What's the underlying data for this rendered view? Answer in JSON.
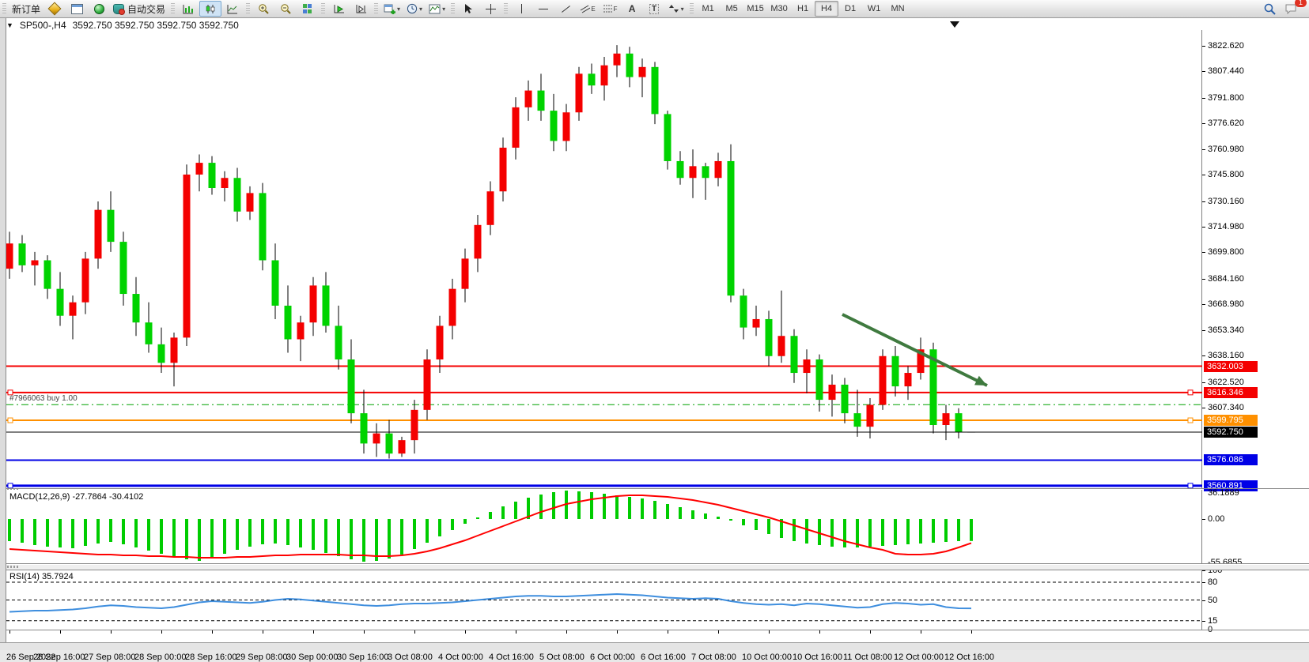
{
  "toolbar": {
    "new_order_label": "新订单",
    "auto_trading_label": "自动交易",
    "timeframes": [
      "M1",
      "M5",
      "M15",
      "M30",
      "H1",
      "H4",
      "D1",
      "W1",
      "MN"
    ],
    "active_timeframe": "H4",
    "notification_count": "1"
  },
  "chart_header": {
    "symbol_period": "SP500-,H4",
    "ohlc": "3592.750 3592.750 3592.750 3592.750"
  },
  "chart": {
    "colors": {
      "bull": "#f40000",
      "bear": "#00d300",
      "wick": "#000000",
      "macd_histogram": "#00cc00",
      "macd_signal": "#ff0000",
      "rsi_line": "#3e8ede",
      "arrow": "#3f7a3f"
    },
    "price_axis": {
      "ticks": [
        "3822.620",
        "3807.440",
        "3791.800",
        "3776.620",
        "3760.980",
        "3745.800",
        "3730.160",
        "3714.980",
        "3699.800",
        "3684.160",
        "3668.980",
        "3653.340",
        "3638.160",
        "3622.520",
        "3607.340"
      ]
    },
    "levels": [
      {
        "name": "resistance-line-upper",
        "price": 3632.003,
        "badge": "3632.003",
        "color": "#f40000",
        "width": 2,
        "dash": null,
        "handles": false
      },
      {
        "name": "resistance-line-lower",
        "price": 3616.346,
        "badge": "3616.346",
        "color": "#f40000",
        "width": 2,
        "dash": null,
        "handles": true
      },
      {
        "name": "buy-order-line",
        "price": 3609.1,
        "badge": null,
        "color": "#00a000",
        "width": 1,
        "dash": "9,4,2,4",
        "handles": false
      },
      {
        "name": "support-line-orange",
        "price": 3599.795,
        "badge": "3599.795",
        "color": "#ff9000",
        "width": 2,
        "dash": null,
        "handles": true
      },
      {
        "name": "current-price-line",
        "price": 3592.75,
        "badge": "3592.750",
        "color": "#000000",
        "width": 1,
        "dash": null,
        "handles": false
      },
      {
        "name": "support-line-blue-upper",
        "price": 3576.086,
        "badge": "3576.086",
        "color": "#0000e6",
        "width": 2,
        "dash": null,
        "handles": false
      },
      {
        "name": "support-line-blue-lower",
        "price": 3560.891,
        "badge": "3560.891",
        "color": "#0000e6",
        "width": 3,
        "dash": null,
        "handles": true
      }
    ],
    "order_label": "#7966063 buy 1.00",
    "candles": [
      [
        3690,
        3712,
        3684,
        3705
      ],
      [
        3705,
        3710,
        3688,
        3692
      ],
      [
        3692,
        3700,
        3680,
        3695
      ],
      [
        3695,
        3698,
        3672,
        3678
      ],
      [
        3678,
        3688,
        3656,
        3662
      ],
      [
        3662,
        3674,
        3648,
        3670
      ],
      [
        3670,
        3700,
        3663,
        3696
      ],
      [
        3696,
        3730,
        3690,
        3725
      ],
      [
        3725,
        3736,
        3700,
        3706
      ],
      [
        3706,
        3712,
        3668,
        3675
      ],
      [
        3675,
        3685,
        3650,
        3658
      ],
      [
        3658,
        3670,
        3640,
        3645
      ],
      [
        3645,
        3655,
        3628,
        3634
      ],
      [
        3634,
        3652,
        3620,
        3649
      ],
      [
        3649,
        3752,
        3644,
        3746
      ],
      [
        3746,
        3758,
        3736,
        3753
      ],
      [
        3753,
        3757,
        3734,
        3738
      ],
      [
        3738,
        3748,
        3730,
        3744
      ],
      [
        3744,
        3750,
        3718,
        3724
      ],
      [
        3724,
        3739,
        3719,
        3735
      ],
      [
        3735,
        3741,
        3689,
        3695
      ],
      [
        3695,
        3705,
        3660,
        3668
      ],
      [
        3668,
        3680,
        3640,
        3648
      ],
      [
        3648,
        3662,
        3635,
        3658
      ],
      [
        3658,
        3685,
        3650,
        3680
      ],
      [
        3680,
        3688,
        3652,
        3656
      ],
      [
        3656,
        3668,
        3630,
        3636
      ],
      [
        3636,
        3648,
        3598,
        3604
      ],
      [
        3604,
        3618,
        3580,
        3586
      ],
      [
        3586,
        3598,
        3578,
        3592
      ],
      [
        3592,
        3600,
        3577,
        3580
      ],
      [
        3580,
        3590,
        3578,
        3588
      ],
      [
        3588,
        3612,
        3580,
        3606
      ],
      [
        3606,
        3642,
        3600,
        3636
      ],
      [
        3636,
        3662,
        3628,
        3656
      ],
      [
        3656,
        3684,
        3648,
        3678
      ],
      [
        3678,
        3702,
        3670,
        3696
      ],
      [
        3696,
        3722,
        3688,
        3716
      ],
      [
        3716,
        3742,
        3710,
        3736
      ],
      [
        3736,
        3768,
        3730,
        3762
      ],
      [
        3762,
        3792,
        3755,
        3786
      ],
      [
        3786,
        3802,
        3778,
        3796
      ],
      [
        3796,
        3806,
        3778,
        3784
      ],
      [
        3784,
        3794,
        3760,
        3766
      ],
      [
        3766,
        3788,
        3760,
        3783
      ],
      [
        3783,
        3810,
        3778,
        3806
      ],
      [
        3806,
        3812,
        3794,
        3799
      ],
      [
        3799,
        3816,
        3790,
        3811
      ],
      [
        3811,
        3823,
        3804,
        3818
      ],
      [
        3818,
        3822,
        3798,
        3804
      ],
      [
        3804,
        3815,
        3792,
        3810
      ],
      [
        3810,
        3813,
        3776,
        3782
      ],
      [
        3782,
        3784,
        3749,
        3754
      ],
      [
        3754,
        3760,
        3740,
        3744
      ],
      [
        3744,
        3761,
        3732,
        3751
      ],
      [
        3751,
        3753,
        3731,
        3744
      ],
      [
        3744,
        3759,
        3739,
        3754
      ],
      [
        3754,
        3764,
        3670,
        3674
      ],
      [
        3674,
        3678,
        3648,
        3655
      ],
      [
        3655,
        3668,
        3650,
        3660
      ],
      [
        3660,
        3665,
        3632,
        3638
      ],
      [
        3638,
        3677,
        3634,
        3650
      ],
      [
        3650,
        3654,
        3622,
        3628
      ],
      [
        3628,
        3642,
        3616,
        3636
      ],
      [
        3636,
        3639,
        3605,
        3612
      ],
      [
        3612,
        3627,
        3602,
        3621
      ],
      [
        3621,
        3625,
        3598,
        3604
      ],
      [
        3604,
        3618,
        3590,
        3596
      ],
      [
        3596,
        3613,
        3589,
        3609
      ],
      [
        3609,
        3642,
        3606,
        3638
      ],
      [
        3638,
        3644,
        3614,
        3620
      ],
      [
        3620,
        3632,
        3612,
        3628
      ],
      [
        3628,
        3649,
        3624,
        3642
      ],
      [
        3642,
        3646,
        3592,
        3597
      ],
      [
        3597,
        3609,
        3588,
        3604
      ],
      [
        3604,
        3607,
        3589,
        3593
      ],
      [
        3592.75,
        3592.75,
        3592.75,
        3592.75
      ]
    ],
    "macd": {
      "name_label": "MACD(12,26,9)",
      "values_label": "-27.7864 -30.4102",
      "scale_max": "36.1889",
      "scale_zero": "0.00",
      "scale_min": "-55.6855",
      "histogram": [
        -28,
        -30,
        -33,
        -35,
        -36,
        -37,
        -34,
        -31,
        -29,
        -32,
        -36,
        -40,
        -44,
        -48,
        -51,
        -53,
        -49,
        -44,
        -39,
        -35,
        -32,
        -31,
        -33,
        -36,
        -39,
        -43,
        -47,
        -51,
        -54,
        -53,
        -50,
        -45,
        -38,
        -30,
        -22,
        -14,
        -6,
        2,
        9,
        16,
        22,
        27,
        31,
        34,
        36,
        35,
        34,
        32,
        30,
        28,
        26,
        23,
        19,
        15,
        11,
        7,
        3,
        -2,
        -8,
        -14,
        -19,
        -24,
        -28,
        -31,
        -33,
        -35,
        -36,
        -36,
        -35,
        -34,
        -33,
        -32,
        -31,
        -30,
        -29,
        -28,
        -27.8
      ],
      "signal": [
        -38,
        -39,
        -40,
        -41,
        -42,
        -43,
        -44,
        -45,
        -45,
        -46,
        -46,
        -47,
        -47,
        -48,
        -48,
        -49,
        -49,
        -49,
        -48,
        -48,
        -47,
        -46,
        -46,
        -45,
        -45,
        -45,
        -45,
        -46,
        -46,
        -47,
        -47,
        -46,
        -44,
        -41,
        -37,
        -32,
        -27,
        -21,
        -15,
        -9,
        -3,
        3,
        9,
        14,
        19,
        22,
        25,
        27,
        29,
        30,
        30,
        29,
        28,
        26,
        24,
        21,
        18,
        14,
        10,
        6,
        2,
        -3,
        -8,
        -13,
        -18,
        -23,
        -28,
        -32,
        -36,
        -39,
        -44,
        -45,
        -45,
        -44,
        -41,
        -36,
        -30.4
      ]
    },
    "rsi": {
      "name_label": "RSI(14)",
      "value_label": "35.7924",
      "axis_labels": [
        "100",
        "80",
        "50",
        "15",
        "0"
      ],
      "level_lines": [
        80,
        50,
        15
      ],
      "values": [
        30,
        31,
        32,
        32,
        33,
        34,
        36,
        39,
        41,
        40,
        38,
        37,
        36,
        38,
        42,
        46,
        48,
        47,
        46,
        45,
        47,
        50,
        52,
        51,
        49,
        47,
        45,
        43,
        41,
        40,
        41,
        43,
        44,
        44,
        45,
        46,
        48,
        50,
        52,
        54,
        56,
        57,
        57,
        56,
        56,
        57,
        58,
        59,
        60,
        59,
        58,
        56,
        54,
        53,
        52,
        53,
        52,
        48,
        45,
        43,
        42,
        43,
        41,
        44,
        43,
        41,
        39,
        37,
        38,
        43,
        45,
        44,
        42,
        43,
        38,
        36,
        35.79
      ]
    },
    "time_axis": [
      "26 Sep 2022",
      "26 Sep 16:00",
      "27 Sep 08:00",
      "28 Sep 00:00",
      "28 Sep 16:00",
      "29 Sep 08:00",
      "30 Sep 00:00",
      "30 Sep 16:00",
      "3 Oct 08:00",
      "4 Oct 00:00",
      "4 Oct 16:00",
      "5 Oct 08:00",
      "6 Oct 00:00",
      "6 Oct 16:00",
      "7 Oct 08:00",
      "10 Oct 00:00",
      "10 Oct 16:00",
      "11 Oct 08:00",
      "12 Oct 00:00",
      "12 Oct 16:00"
    ]
  }
}
